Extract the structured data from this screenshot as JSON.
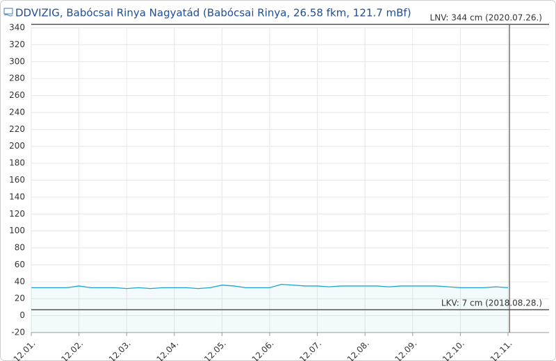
{
  "chart_data": {
    "type": "line",
    "title": "DDVIZIG, Babócsai Rinya Nagyatád (Babócsai Rinya, 26.58 fkm, 121.7 mBf)",
    "x": [
      0,
      0.25,
      0.5,
      0.75,
      1,
      1.25,
      1.5,
      1.75,
      2,
      2.25,
      2.5,
      2.75,
      3,
      3.25,
      3.5,
      3.75,
      4,
      4.25,
      4.5,
      4.75,
      5,
      5.25,
      5.5,
      5.75,
      6,
      6.25,
      6.5,
      6.75,
      7,
      7.25,
      7.5,
      7.75,
      8,
      8.25,
      8.5,
      8.75,
      9,
      9.25,
      9.5,
      9.75,
      10
    ],
    "series": [
      {
        "color": "#1aa3d4",
        "values": [
          33,
          33,
          33,
          33,
          35,
          33,
          33,
          33,
          32,
          33,
          32,
          33,
          33,
          33,
          32,
          33,
          36,
          35,
          33,
          33,
          33,
          37,
          36,
          35,
          35,
          34,
          35,
          35,
          35,
          35,
          34,
          35,
          35,
          35,
          35,
          34,
          33,
          33,
          33,
          34,
          33
        ]
      }
    ],
    "xlim": [
      0,
      10.86
    ],
    "xticks": [
      {
        "value": 0,
        "label": "12.01."
      },
      {
        "value": 1,
        "label": "12.02."
      },
      {
        "value": 2,
        "label": "12.03."
      },
      {
        "value": 3,
        "label": "12.04."
      },
      {
        "value": 4,
        "label": "12.05."
      },
      {
        "value": 5,
        "label": "12.06."
      },
      {
        "value": 6,
        "label": "12.07."
      },
      {
        "value": 7,
        "label": "12.08."
      },
      {
        "value": 8,
        "label": "12.09."
      },
      {
        "value": 9,
        "label": "12.10."
      },
      {
        "value": 10,
        "label": "12.11."
      }
    ],
    "ylim": [
      -20,
      340
    ],
    "yticks": [
      -20,
      0,
      20,
      40,
      60,
      80,
      100,
      120,
      140,
      160,
      180,
      200,
      220,
      240,
      260,
      280,
      300,
      320,
      340
    ],
    "grid": true,
    "now_x": 10.03,
    "reference_lines": [
      {
        "value": 344,
        "label": "LNV: 344 cm (2020.07.26.)"
      },
      {
        "value": 7,
        "label": "LKV: 7 cm (2018.08.28.)"
      }
    ]
  }
}
